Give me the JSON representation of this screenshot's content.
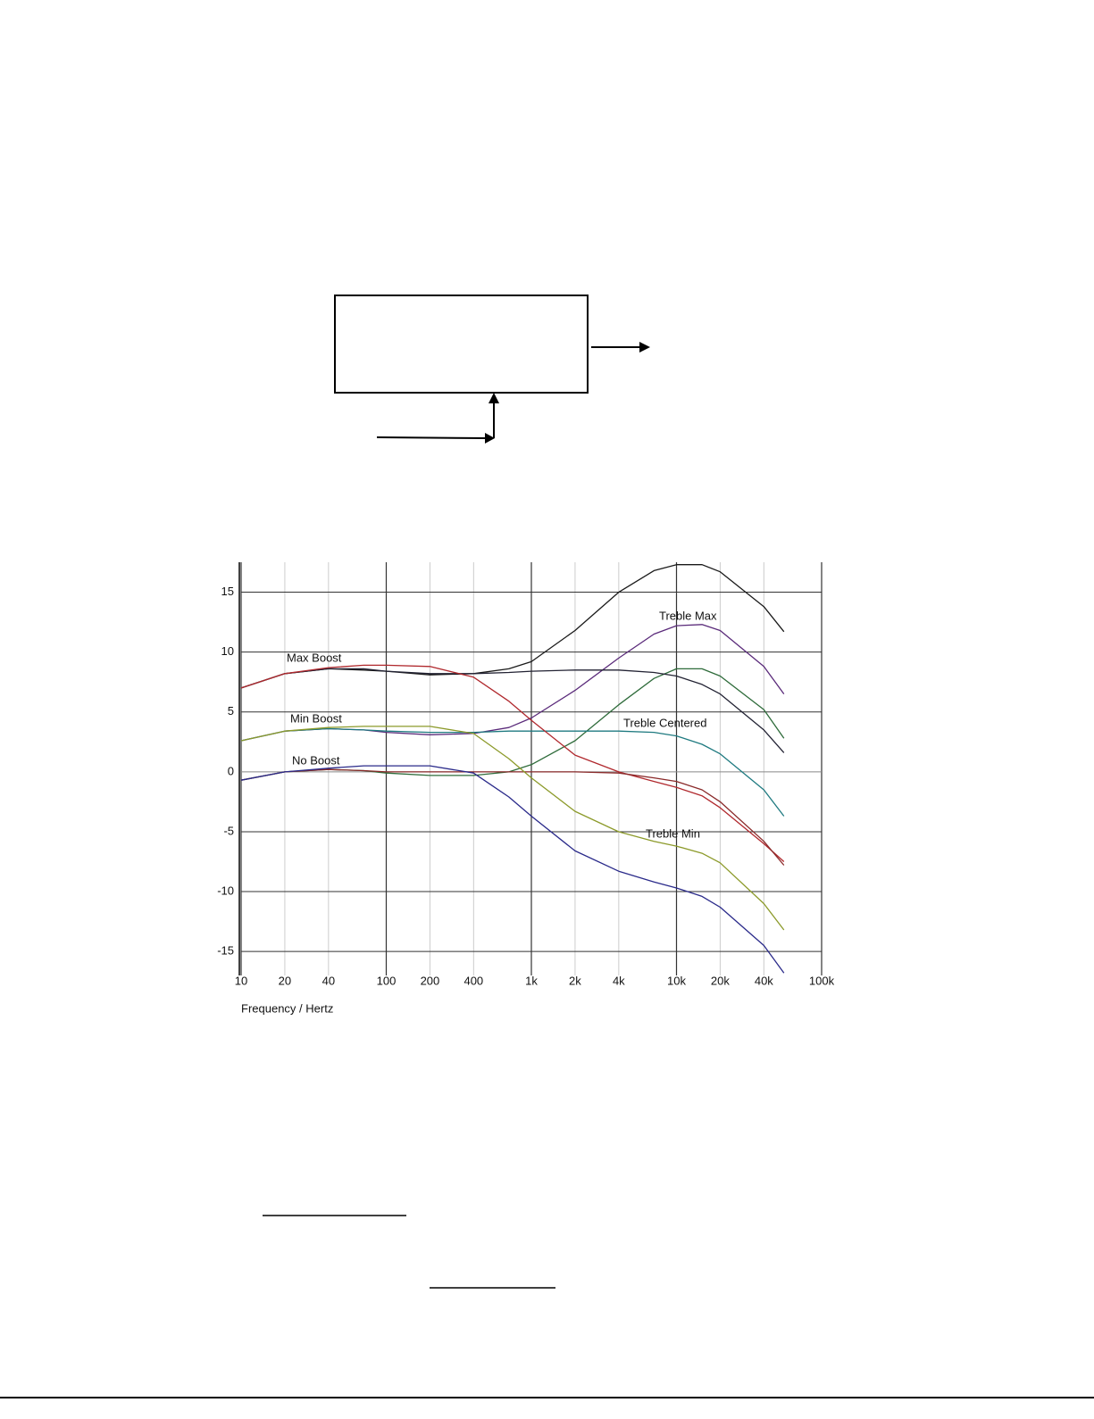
{
  "chart_data": {
    "type": "line",
    "x_label": "Frequency / Hertz",
    "log_x": true,
    "grid": true,
    "xlim": [
      10,
      100000
    ],
    "ylim": [
      -17,
      17.5
    ],
    "xticks": [
      10,
      20,
      40,
      100,
      200,
      400,
      {
        "value": 1000,
        "label": "1k"
      },
      {
        "value": 2000,
        "label": "2k"
      },
      {
        "value": 4000,
        "label": "4k"
      },
      {
        "value": 10000,
        "label": "10k"
      },
      {
        "value": 20000,
        "label": "20k"
      },
      {
        "value": 40000,
        "label": "40k"
      },
      {
        "value": 100000,
        "label": "100k"
      }
    ],
    "yticks": [
      15,
      10,
      5,
      0,
      -5,
      -10,
      -15
    ],
    "annotations": [
      "Max Boost",
      "Min Boost",
      "No Boost",
      "Treble Max",
      "Treble Centered",
      "Treble Min"
    ],
    "x": [
      10,
      20,
      40,
      70,
      100,
      200,
      400,
      700,
      1000,
      2000,
      4000,
      7000,
      10000,
      15000,
      20000,
      40000,
      55000
    ],
    "series": [
      {
        "color": "#1a1a1a",
        "values": [
          7.0,
          8.2,
          8.6,
          8.5,
          8.4,
          8.1,
          8.2,
          8.6,
          9.2,
          11.8,
          15.0,
          16.8,
          17.3,
          17.3,
          16.7,
          13.8,
          11.7
        ]
      },
      {
        "color": "#5a2a7a",
        "values": [
          2.6,
          3.4,
          3.6,
          3.5,
          3.3,
          3.1,
          3.2,
          3.7,
          4.5,
          6.8,
          9.5,
          11.5,
          12.2,
          12.3,
          11.8,
          8.8,
          6.5
        ]
      },
      {
        "color": "#2e6b3a",
        "values": [
          -0.7,
          0.0,
          0.2,
          0.1,
          -0.1,
          -0.3,
          -0.3,
          0.0,
          0.6,
          2.6,
          5.6,
          7.8,
          8.6,
          8.6,
          8.0,
          5.2,
          2.8
        ]
      },
      {
        "color": "#222233",
        "values": [
          7.0,
          8.2,
          8.6,
          8.6,
          8.4,
          8.2,
          8.2,
          8.3,
          8.4,
          8.5,
          8.5,
          8.3,
          8.0,
          7.3,
          6.5,
          3.5,
          1.6
        ]
      },
      {
        "color": "#1f7a80",
        "values": [
          2.6,
          3.4,
          3.6,
          3.5,
          3.4,
          3.3,
          3.3,
          3.4,
          3.4,
          3.4,
          3.4,
          3.3,
          3.0,
          2.3,
          1.5,
          -1.5,
          -3.7
        ]
      },
      {
        "color": "#b0282d",
        "values": [
          7.0,
          8.2,
          8.7,
          8.9,
          8.9,
          8.8,
          7.9,
          5.9,
          4.3,
          1.4,
          0.0,
          -0.8,
          -1.3,
          -2.0,
          -3.0,
          -6.0,
          -7.5
        ]
      },
      {
        "color": "#8a2a2a",
        "values": [
          -0.7,
          0.0,
          0.2,
          0.1,
          0.0,
          0.0,
          0.0,
          0.0,
          0.0,
          0.0,
          -0.1,
          -0.5,
          -0.8,
          -1.5,
          -2.5,
          -5.8,
          -7.8
        ]
      },
      {
        "color": "#8c9a2a",
        "values": [
          2.6,
          3.4,
          3.7,
          3.8,
          3.8,
          3.8,
          3.2,
          1.1,
          -0.5,
          -3.3,
          -5.0,
          -5.8,
          -6.2,
          -6.8,
          -7.6,
          -11.0,
          -13.2
        ]
      },
      {
        "color": "#2a2a8a",
        "values": [
          -0.7,
          0.0,
          0.3,
          0.5,
          0.5,
          0.5,
          -0.1,
          -2.1,
          -3.7,
          -6.6,
          -8.3,
          -9.2,
          -9.7,
          -10.4,
          -11.3,
          -14.5,
          -16.8
        ]
      }
    ]
  }
}
